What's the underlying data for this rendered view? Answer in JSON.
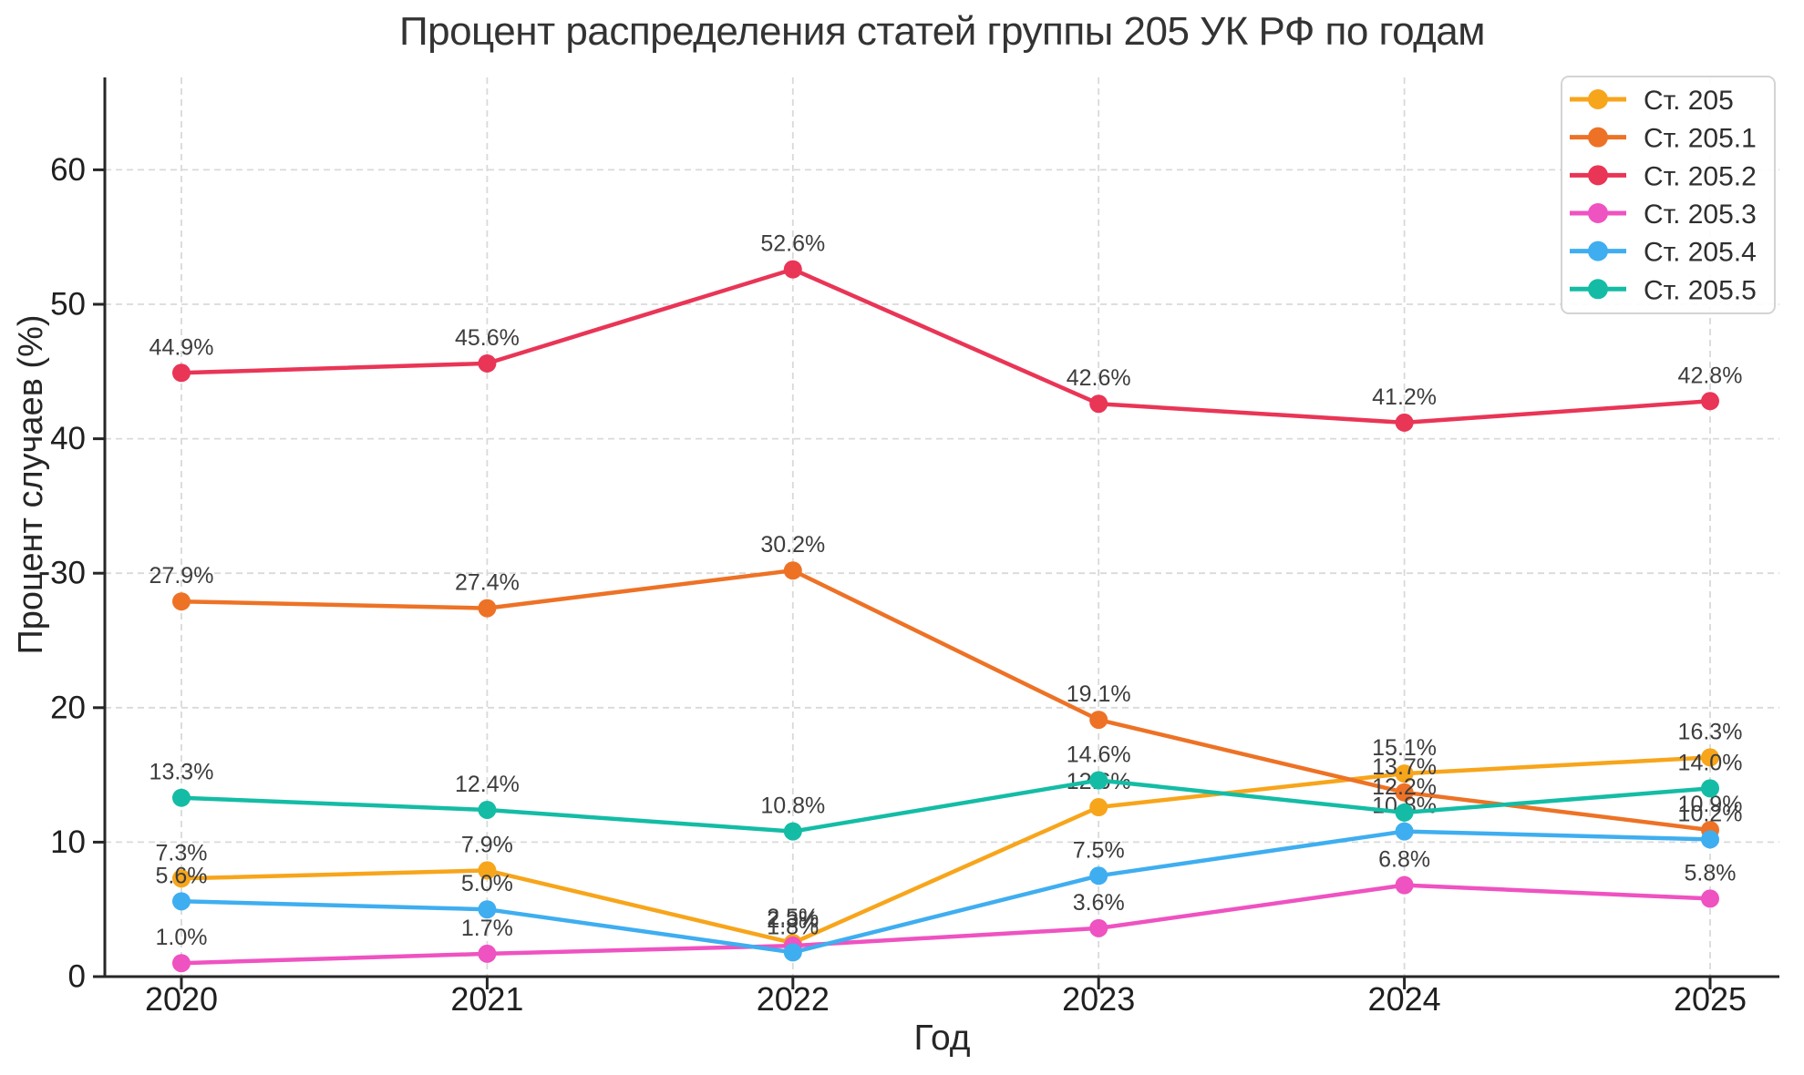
{
  "chart_data": {
    "type": "line",
    "title": "Процент распределения статей группы 205 УК РФ по годам",
    "xlabel": "Год",
    "ylabel": "Процент случаев (%)",
    "categories": [
      "2020",
      "2021",
      "2022",
      "2023",
      "2024",
      "2025"
    ],
    "yticks": [
      0,
      10,
      20,
      30,
      40,
      50,
      60
    ],
    "ylim": [
      0,
      66.9
    ],
    "grid": true,
    "grid_style": "dashed",
    "legend_position": "upper right",
    "series": [
      {
        "name": "Ст. 205",
        "color": "#F7A51B",
        "values": [
          7.3,
          7.9,
          2.5,
          12.6,
          15.1,
          16.3
        ],
        "labels": [
          "7.3%",
          "7.9%",
          "2.5%",
          "12.6%",
          "15.1%",
          "16.3%"
        ]
      },
      {
        "name": "Ст. 205.1",
        "color": "#ED7226",
        "values": [
          27.9,
          27.4,
          30.2,
          19.1,
          13.7,
          10.9
        ],
        "labels": [
          "27.9%",
          "27.4%",
          "30.2%",
          "19.1%",
          "13.7%",
          "10.9%"
        ]
      },
      {
        "name": "Ст. 205.2",
        "color": "#E93556",
        "values": [
          44.9,
          45.6,
          52.6,
          42.6,
          41.2,
          42.8
        ],
        "labels": [
          "44.9%",
          "45.6%",
          "52.6%",
          "42.6%",
          "41.2%",
          "42.8%"
        ]
      },
      {
        "name": "Ст. 205.3",
        "color": "#EF52C1",
        "values": [
          1.0,
          1.7,
          2.3,
          3.6,
          6.8,
          5.8
        ],
        "labels": [
          "1.0%",
          "1.7%",
          "2.3%",
          "3.6%",
          "6.8%",
          "5.8%"
        ]
      },
      {
        "name": "Ст. 205.4",
        "color": "#3FAEF0",
        "values": [
          5.6,
          5.0,
          1.8,
          7.5,
          10.8,
          10.2
        ],
        "labels": [
          "5.6%",
          "5.0%",
          "1.8%",
          "7.5%",
          "10.8%",
          "10.2%"
        ]
      },
      {
        "name": "Ст. 205.5",
        "color": "#14BCA5",
        "values": [
          13.3,
          12.4,
          10.8,
          14.6,
          12.2,
          14.0
        ],
        "labels": [
          "13.3%",
          "12.4%",
          "10.8%",
          "14.6%",
          "12.2%",
          "14.0%"
        ]
      }
    ],
    "colors": {
      "tick_text": "#1f1f1f",
      "data_label": "#3d3d3d",
      "grid": "#d9d9d9",
      "axis": "#262626",
      "legend_border": "#d4d4d4",
      "legend_text": "#2e2e2e",
      "background": "#ffffff"
    }
  }
}
